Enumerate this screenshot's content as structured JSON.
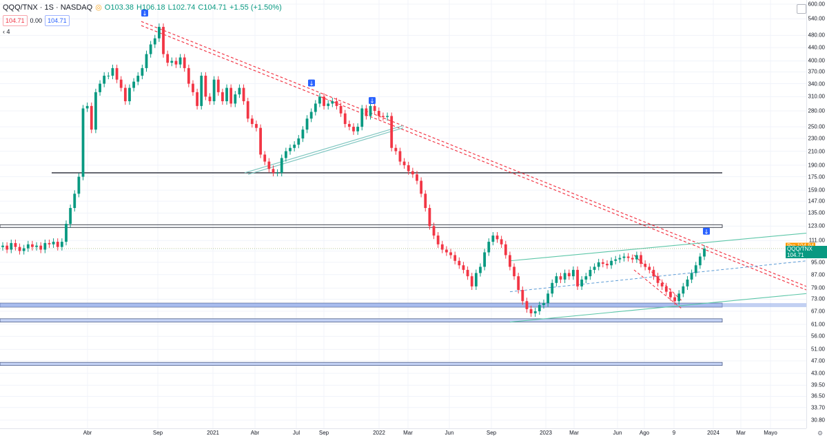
{
  "header": {
    "symbol": "QQQ/TNX · 1S · NASDAQ",
    "open": "O103.38",
    "high": "H106.18",
    "low": "L102.74",
    "close": "C104.71",
    "change": "+1.55 (+1.50%)",
    "sell_price": "104.71",
    "spread": "0.00",
    "buy_price": "104.71",
    "indicator_count": "4"
  },
  "price_tags": {
    "pre_label": "Pre",
    "pre_value": "104.94",
    "symbol_label": "QQQ/TNX",
    "last_value": "104.71"
  },
  "chart_data": {
    "type": "candlestick",
    "y_scale": "log",
    "y_ticks": [
      600,
      540,
      480,
      440,
      400,
      370,
      340,
      310,
      280,
      250,
      230,
      210,
      190,
      175,
      159,
      147,
      135,
      123,
      111,
      103,
      95,
      87,
      79,
      73,
      67,
      61,
      56,
      51,
      47,
      43,
      39.5,
      36.5,
      33.7,
      30.8
    ],
    "y_tick_labels": [
      "600.00",
      "540.00",
      "480.00",
      "440.00",
      "400.00",
      "370.00",
      "340.00",
      "310.00",
      "280.00",
      "250.00",
      "230.00",
      "210.00",
      "190.00",
      "175.00",
      "159.00",
      "147.00",
      "135.00",
      "123.00",
      "111.00",
      "103.00",
      "95.00",
      "87.00",
      "79.00",
      "73.00",
      "67.00",
      "61.00",
      "56.00",
      "51.00",
      "47.00",
      "43.00",
      "39.50",
      "36.50",
      "33.70",
      "30.80"
    ],
    "x_labels": [
      "Abr",
      "Sep",
      "2021",
      "Abr",
      "Jul",
      "Sep",
      "2022",
      "Mar",
      "Jun",
      "Sep",
      "2023",
      "Mar",
      "Jun",
      "Ago",
      "9",
      "2024",
      "Mar",
      "Mayo"
    ],
    "close_series": [
      107,
      104,
      109,
      106,
      103,
      105,
      108,
      106,
      107,
      104,
      109,
      108,
      110,
      106,
      110,
      125,
      140,
      155,
      175,
      285,
      290,
      245,
      320,
      340,
      360,
      360,
      380,
      350,
      330,
      300,
      330,
      345,
      360,
      380,
      420,
      450,
      470,
      510,
      420,
      395,
      400,
      390,
      410,
      380,
      340,
      320,
      290,
      360,
      310,
      300,
      350,
      320,
      300,
      330,
      295,
      315,
      330,
      300,
      265,
      255,
      248,
      205,
      195,
      185,
      180,
      180,
      200,
      210,
      215,
      220,
      230,
      245,
      265,
      278,
      295,
      310,
      290,
      295,
      300,
      290,
      275,
      255,
      250,
      242,
      250,
      285,
      270,
      290,
      280,
      270,
      268,
      270,
      215,
      210,
      195,
      190,
      182,
      178,
      170,
      155,
      140,
      123,
      115,
      108,
      104,
      102,
      100,
      96,
      93,
      90,
      86,
      80,
      88,
      92,
      102,
      110,
      115,
      112,
      108,
      100,
      92,
      86,
      78,
      72,
      68,
      66,
      67,
      70,
      71,
      76,
      82,
      86,
      84,
      88,
      86,
      90,
      80,
      84,
      86,
      90,
      92,
      95,
      94,
      93,
      96,
      97,
      98,
      99,
      98,
      97,
      100,
      94,
      92,
      90,
      86,
      82,
      80,
      77,
      74,
      72,
      76,
      80,
      84,
      88,
      93,
      99,
      104.71
    ],
    "resistance_lines": [
      180.0,
      123.0
    ],
    "support_zones": [
      [
        69.0,
        71.0
      ],
      [
        62.0,
        63.5
      ],
      [
        45.5,
        46.5
      ]
    ],
    "last": 104.71
  }
}
